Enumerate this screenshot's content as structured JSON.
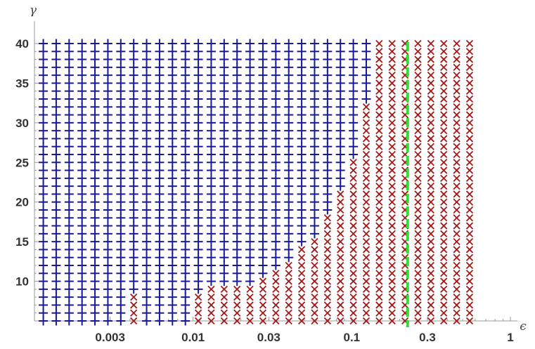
{
  "chart_data": {
    "type": "scatter",
    "xlabel": "ϵ",
    "ylabel": "γ",
    "x_scale": "log",
    "xlim": [
      0.001,
      1
    ],
    "ylim": [
      5,
      40
    ],
    "x_ticks": [
      {
        "value": 0.003,
        "label": "0.003"
      },
      {
        "value": 0.01,
        "label": "0.01"
      },
      {
        "value": 0.03,
        "label": "0.03"
      },
      {
        "value": 0.1,
        "label": "0.1"
      },
      {
        "value": 0.3,
        "label": "0.3"
      },
      {
        "value": 1,
        "label": "1"
      }
    ],
    "y_ticks": [
      {
        "value": 10,
        "label": "10"
      },
      {
        "value": 15,
        "label": "15"
      },
      {
        "value": 20,
        "label": "20"
      },
      {
        "value": 25,
        "label": "25"
      },
      {
        "value": 30,
        "label": "30"
      },
      {
        "value": 35,
        "label": "35"
      },
      {
        "value": 40,
        "label": "40"
      }
    ],
    "epsilon_values": [
      0.001137,
      0.001371,
      0.001654,
      0.001995,
      0.002406,
      0.002903,
      0.003501,
      0.004223,
      0.005094,
      0.006145,
      0.007412,
      0.008941,
      0.010785,
      0.013009,
      0.015692,
      0.018929,
      0.022833,
      0.027542,
      0.033223,
      0.040075,
      0.04834,
      0.05831,
      0.070336,
      0.084842,
      0.10234,
      0.123449,
      0.14891,
      0.179621,
      0.216667,
      0.261353,
      0.315256,
      0.380276,
      0.458703,
      0.553305
    ],
    "gamma_values": [
      5,
      6,
      7,
      8,
      9,
      10,
      11,
      12,
      13,
      14,
      15,
      16,
      17,
      18,
      19,
      20,
      21,
      22,
      23,
      24,
      25,
      26,
      27,
      28,
      29,
      30,
      31,
      32,
      33,
      34,
      35,
      36,
      37,
      38,
      39,
      40
    ],
    "boundary_gamma": [
      0,
      0,
      0,
      0,
      0,
      0,
      0,
      8,
      0,
      0,
      0,
      0,
      8,
      9,
      9,
      9,
      9,
      10,
      11,
      12,
      14,
      15,
      18,
      21,
      25,
      32,
      40,
      40,
      40,
      40,
      40,
      40,
      40,
      40
    ],
    "series": [
      {
        "name": "",
        "marker": "plus",
        "color": "#1a1a99",
        "rule": "gamma > boundary_gamma"
      },
      {
        "name": "",
        "marker": "cross",
        "color": "#a31a1a",
        "rule": "gamma <= boundary_gamma"
      }
    ],
    "reference_line": {
      "x": 0.225,
      "style": "dashed",
      "color": "#33dd33"
    },
    "grid": false,
    "legend": "none"
  }
}
